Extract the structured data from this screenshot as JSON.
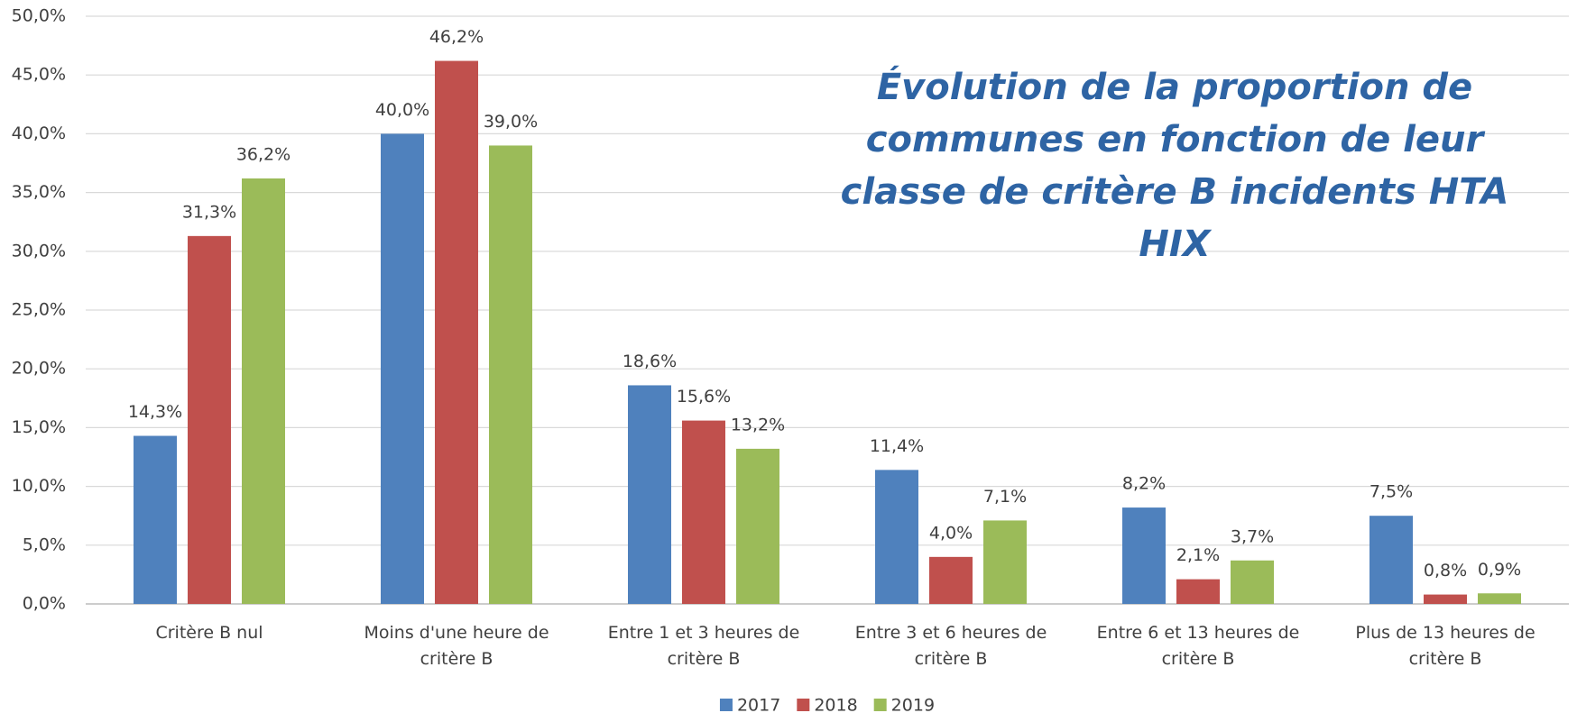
{
  "chart_data": {
    "type": "bar",
    "title": "Évolution de la proportion de communes en fonction de leur classe de critère B incidents HTA HIX",
    "categories": [
      "Critère B nul",
      "Moins d'une heure de critère B",
      "Entre 1 et 3 heures de critère B",
      "Entre 3 et 6 heures de critère B",
      "Entre 6 et 13 heures de critère B",
      "Plus de 13 heures de critère B"
    ],
    "series": [
      {
        "name": "2017",
        "color": "#4f81bd",
        "values": [
          14.3,
          40.0,
          18.6,
          11.4,
          8.2,
          7.5
        ],
        "value_labels": [
          "14,3%",
          "40,0%",
          "18,6%",
          "11,4%",
          "8,2%",
          "7,5%"
        ]
      },
      {
        "name": "2018",
        "color": "#c0504d",
        "values": [
          31.3,
          46.2,
          15.6,
          4.0,
          2.1,
          0.8
        ],
        "value_labels": [
          "31,3%",
          "46,2%",
          "15,6%",
          "4,0%",
          "2,1%",
          "0,8%"
        ]
      },
      {
        "name": "2019",
        "color": "#9bbb59",
        "values": [
          36.2,
          39.0,
          13.2,
          7.1,
          3.7,
          0.9
        ],
        "value_labels": [
          "36,2%",
          "39,0%",
          "13,2%",
          "7,1%",
          "3,7%",
          "0,9%"
        ]
      }
    ],
    "ylim": [
      0,
      50
    ],
    "yticks": [
      {
        "value": 0,
        "label": "0,0%"
      },
      {
        "value": 5,
        "label": "5,0%"
      },
      {
        "value": 10,
        "label": "10,0%"
      },
      {
        "value": 15,
        "label": "15,0%"
      },
      {
        "value": 20,
        "label": "20,0%"
      },
      {
        "value": 25,
        "label": "25,0%"
      },
      {
        "value": 30,
        "label": "30,0%"
      },
      {
        "value": 35,
        "label": "35,0%"
      },
      {
        "value": 40,
        "label": "40,0%"
      },
      {
        "value": 45,
        "label": "45,0%"
      },
      {
        "value": 50,
        "label": "50,0%"
      }
    ],
    "grid": true,
    "legend": "bottom"
  }
}
